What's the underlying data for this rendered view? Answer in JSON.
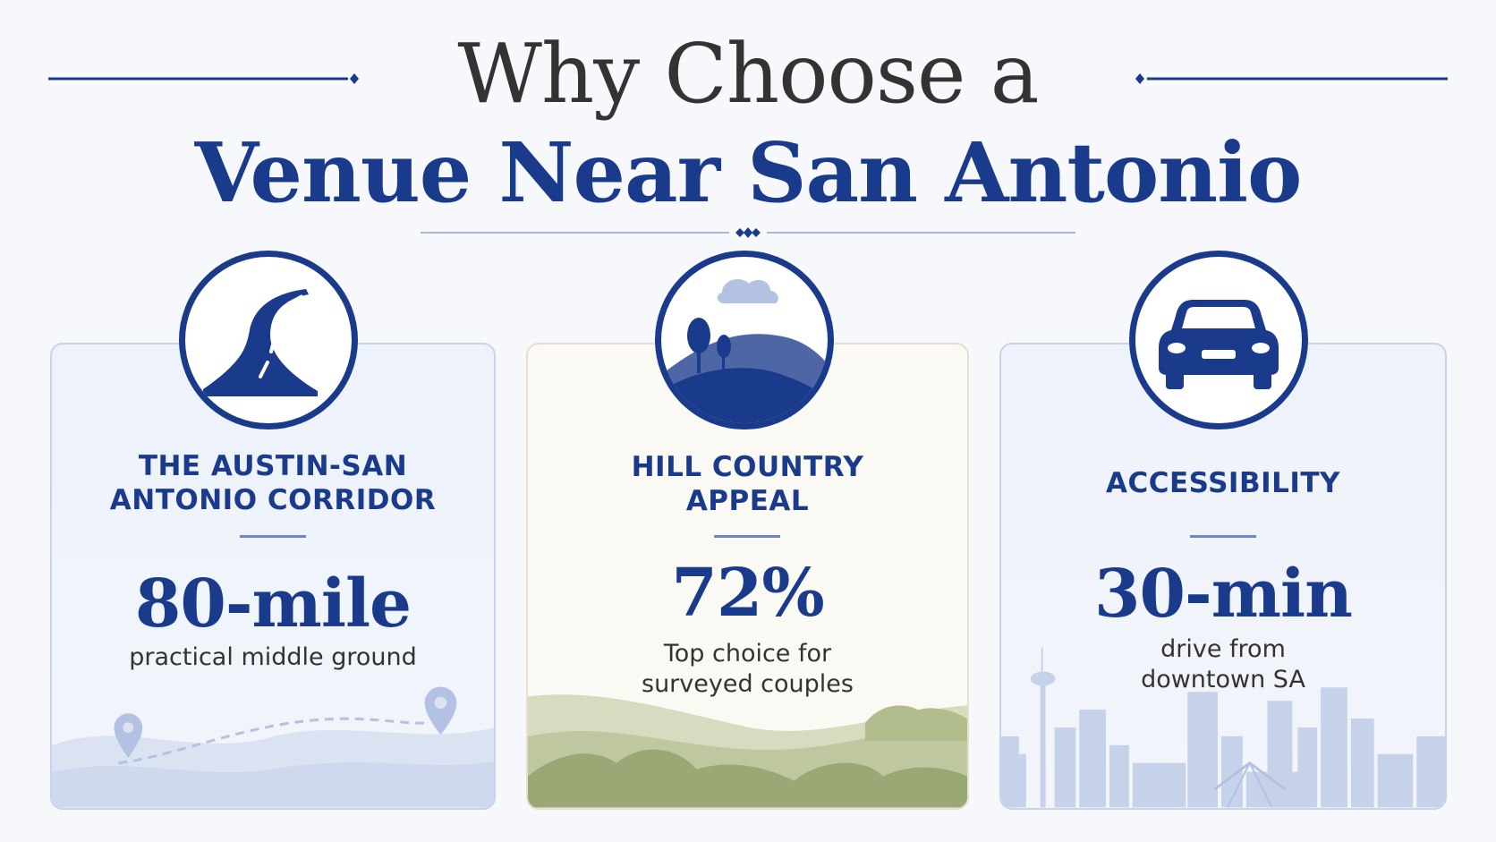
{
  "header": {
    "title_line1": "Why Choose a",
    "title_line2": "Venue Near San Antonio"
  },
  "colors": {
    "navy": "#1a3a8c",
    "text_dark": "#333333",
    "card_blue": "#edf2fb",
    "card_cream": "#fbf9f4",
    "hill_green": "#9aa874"
  },
  "cards": [
    {
      "icon": "winding-road-icon",
      "heading_line1": "THE AUSTIN-SAN",
      "heading_line2": "ANTONIO CORRIDOR",
      "stat": "80-mile",
      "desc_line1": "practical middle ground",
      "desc_line2": ""
    },
    {
      "icon": "hill-landscape-icon",
      "heading_line1": "HILL COUNTRY",
      "heading_line2": "APPEAL",
      "stat": "72%",
      "desc_line1": "Top choice for",
      "desc_line2": "surveyed couples"
    },
    {
      "icon": "car-icon",
      "heading_line1": "ACCESSIBILITY",
      "heading_line2": "",
      "stat": "30-min",
      "desc_line1": "drive from",
      "desc_line2": "downtown SA"
    }
  ]
}
